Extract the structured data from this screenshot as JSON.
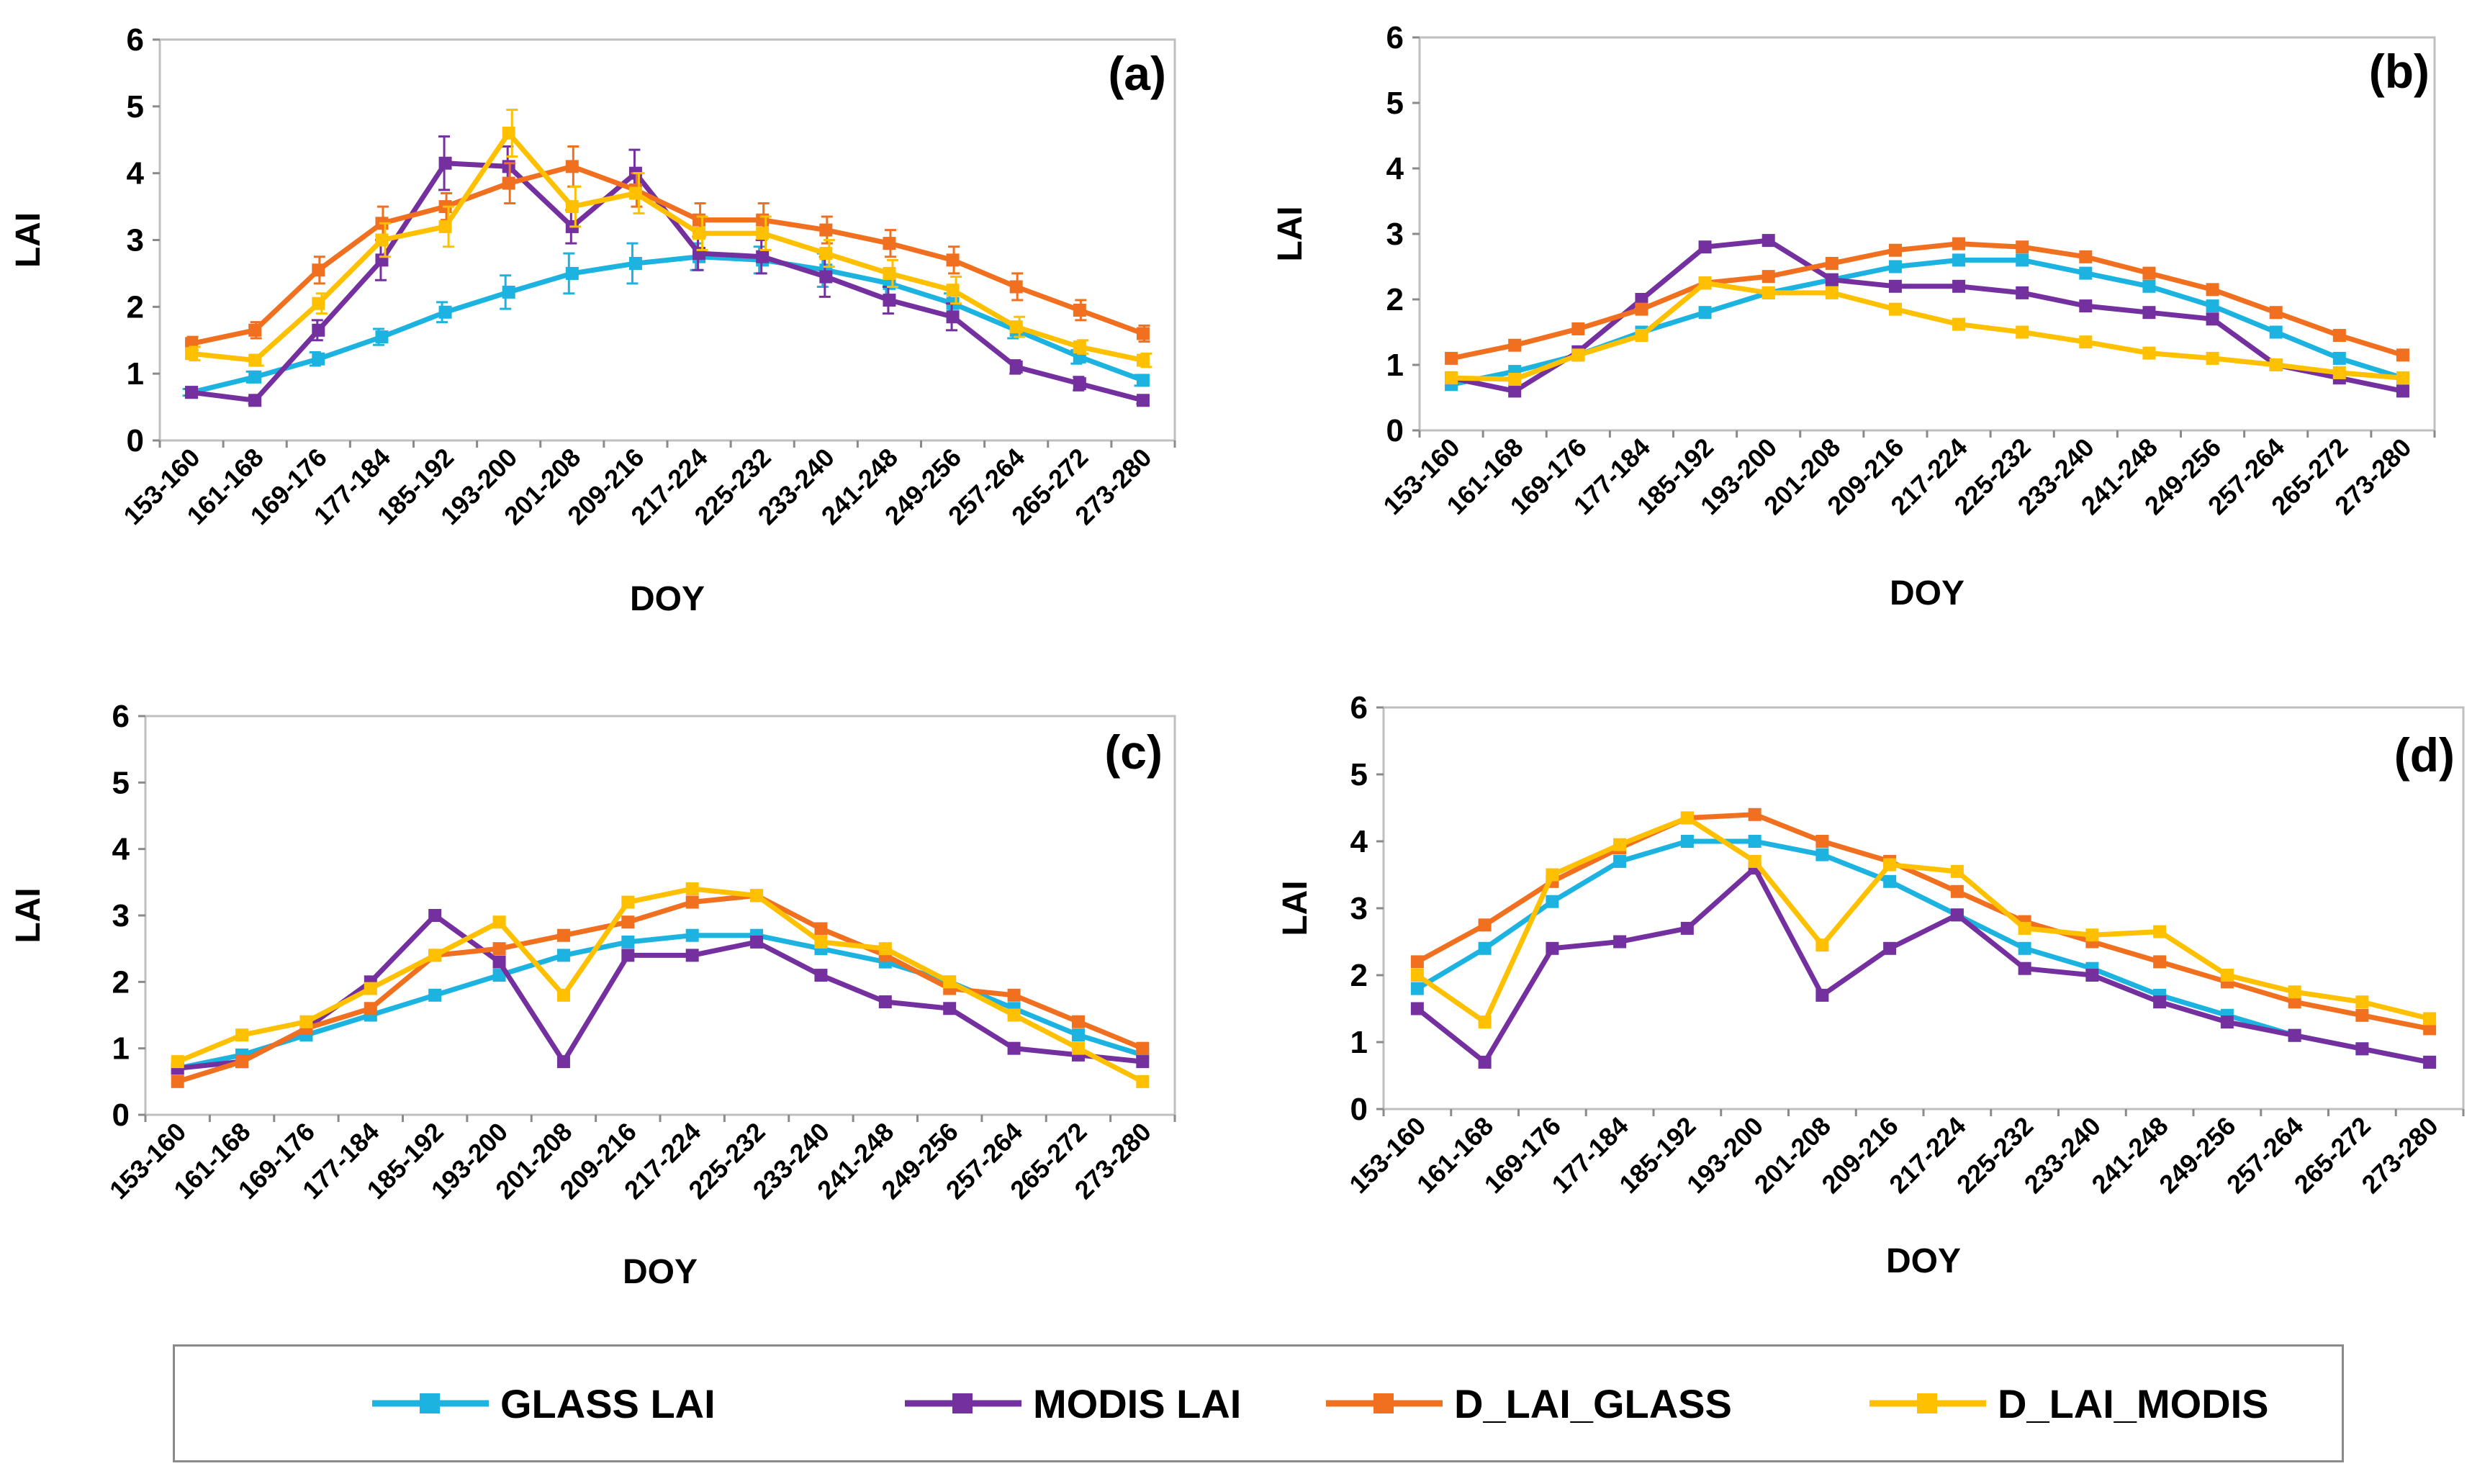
{
  "categories": [
    "153-160",
    "161-168",
    "169-176",
    "177-184",
    "185-192",
    "193-200",
    "201-208",
    "209-216",
    "217-224",
    "225-232",
    "233-240",
    "241-248",
    "249-256",
    "257-264",
    "265-272",
    "273-280"
  ],
  "series_meta": [
    {
      "key": "glass",
      "name": "GLASS LAI",
      "color": "#1cb3e0"
    },
    {
      "key": "modis",
      "name": "MODIS LAI",
      "color": "#7530a0"
    },
    {
      "key": "dglass",
      "name": "D_LAI_GLASS",
      "color": "#f07020"
    },
    {
      "key": "dmodis",
      "name": "D_LAI_MODIS",
      "color": "#ffc000"
    }
  ],
  "chart_data": [
    {
      "type": "line",
      "panel": "(a)",
      "xlabel": "DOY",
      "ylabel": "LAI",
      "ylim": [
        0,
        6
      ],
      "yticks": [
        "0",
        "1",
        "2",
        "3",
        "4",
        "5",
        "6"
      ],
      "error_bars": true,
      "series": [
        {
          "name": "GLASS LAI",
          "values": [
            0.72,
            0.95,
            1.22,
            1.55,
            1.92,
            2.22,
            2.5,
            2.65,
            2.75,
            2.7,
            2.55,
            2.35,
            2.05,
            1.65,
            1.25,
            0.9
          ],
          "errors": [
            0.05,
            0.08,
            0.1,
            0.12,
            0.15,
            0.25,
            0.3,
            0.3,
            0.2,
            0.2,
            0.25,
            0.2,
            0.15,
            0.12,
            0.1,
            0.08
          ]
        },
        {
          "name": "MODIS LAI",
          "values": [
            0.72,
            0.6,
            1.65,
            2.7,
            4.15,
            4.1,
            3.2,
            4.0,
            2.8,
            2.75,
            2.45,
            2.1,
            1.85,
            1.1,
            0.85,
            0.6
          ],
          "errors": [
            0.05,
            0.05,
            0.15,
            0.3,
            0.4,
            0.3,
            0.25,
            0.35,
            0.25,
            0.25,
            0.3,
            0.2,
            0.2,
            0.1,
            0.1,
            0.05
          ]
        },
        {
          "name": "D_LAI_GLASS",
          "values": [
            1.45,
            1.65,
            2.55,
            3.25,
            3.5,
            3.85,
            4.1,
            3.75,
            3.3,
            3.3,
            3.15,
            2.95,
            2.7,
            2.3,
            1.95,
            1.6
          ],
          "errors": [
            0.1,
            0.12,
            0.2,
            0.25,
            0.2,
            0.3,
            0.3,
            0.25,
            0.25,
            0.25,
            0.2,
            0.2,
            0.2,
            0.2,
            0.15,
            0.12
          ]
        },
        {
          "name": "D_LAI_MODIS",
          "values": [
            1.3,
            1.2,
            2.05,
            3.0,
            3.2,
            4.6,
            3.5,
            3.7,
            3.1,
            3.1,
            2.8,
            2.5,
            2.25,
            1.7,
            1.4,
            1.2
          ],
          "errors": [
            0.1,
            0.08,
            0.15,
            0.25,
            0.3,
            0.35,
            0.3,
            0.3,
            0.25,
            0.25,
            0.2,
            0.2,
            0.2,
            0.15,
            0.1,
            0.1
          ]
        }
      ]
    },
    {
      "type": "line",
      "panel": "(b)",
      "xlabel": "DOY",
      "ylabel": "LAI",
      "ylim": [
        0,
        6
      ],
      "yticks": [
        "0",
        "1",
        "2",
        "3",
        "4",
        "5",
        "6"
      ],
      "error_bars": false,
      "series": [
        {
          "name": "GLASS LAI",
          "values": [
            0.7,
            0.9,
            1.15,
            1.5,
            1.8,
            2.1,
            2.3,
            2.5,
            2.6,
            2.6,
            2.4,
            2.2,
            1.9,
            1.5,
            1.1,
            0.8
          ]
        },
        {
          "name": "MODIS LAI",
          "values": [
            0.8,
            0.6,
            1.2,
            2.0,
            2.8,
            2.9,
            2.3,
            2.2,
            2.2,
            2.1,
            1.9,
            1.8,
            1.7,
            1.0,
            0.8,
            0.6
          ]
        },
        {
          "name": "D_LAI_GLASS",
          "values": [
            1.1,
            1.3,
            1.55,
            1.85,
            2.25,
            2.35,
            2.55,
            2.75,
            2.85,
            2.8,
            2.65,
            2.4,
            2.15,
            1.8,
            1.45,
            1.15
          ]
        },
        {
          "name": "D_LAI_MODIS",
          "values": [
            0.8,
            0.78,
            1.15,
            1.45,
            2.25,
            2.1,
            2.1,
            1.85,
            1.62,
            1.5,
            1.35,
            1.18,
            1.1,
            1.0,
            0.88,
            0.8
          ]
        }
      ]
    },
    {
      "type": "line",
      "panel": "(c)",
      "xlabel": "DOY",
      "ylabel": "LAI",
      "ylim": [
        0,
        6
      ],
      "yticks": [
        "0",
        "1",
        "2",
        "3",
        "4",
        "5",
        "6"
      ],
      "error_bars": false,
      "series": [
        {
          "name": "GLASS LAI",
          "values": [
            0.7,
            0.9,
            1.2,
            1.5,
            1.8,
            2.1,
            2.4,
            2.6,
            2.7,
            2.7,
            2.5,
            2.3,
            2.0,
            1.6,
            1.2,
            0.9
          ]
        },
        {
          "name": "MODIS LAI",
          "values": [
            0.7,
            0.8,
            1.3,
            2.0,
            3.0,
            2.3,
            0.8,
            2.4,
            2.4,
            2.6,
            2.1,
            1.7,
            1.6,
            1.0,
            0.9,
            0.8
          ]
        },
        {
          "name": "D_LAI_GLASS",
          "values": [
            0.5,
            0.8,
            1.3,
            1.6,
            2.4,
            2.5,
            2.7,
            2.9,
            3.2,
            3.3,
            2.8,
            2.4,
            1.9,
            1.8,
            1.4,
            1.0
          ]
        },
        {
          "name": "D_LAI_MODIS",
          "values": [
            0.8,
            1.2,
            1.4,
            1.9,
            2.4,
            2.9,
            1.8,
            3.2,
            3.4,
            3.3,
            2.6,
            2.5,
            2.0,
            1.5,
            1.0,
            0.5
          ]
        }
      ]
    },
    {
      "type": "line",
      "panel": "(d)",
      "xlabel": "DOY",
      "ylabel": "LAI",
      "ylim": [
        0,
        6
      ],
      "yticks": [
        "0",
        "1",
        "2",
        "3",
        "4",
        "5",
        "6"
      ],
      "error_bars": false,
      "series": [
        {
          "name": "GLASS LAI",
          "values": [
            1.8,
            2.4,
            3.1,
            3.7,
            4.0,
            4.0,
            3.8,
            3.4,
            2.9,
            2.4,
            2.1,
            1.7,
            1.4,
            1.1,
            0.9,
            0.7
          ]
        },
        {
          "name": "MODIS LAI",
          "values": [
            1.5,
            0.7,
            2.4,
            2.5,
            2.7,
            3.6,
            1.7,
            2.4,
            2.9,
            2.1,
            2.0,
            1.6,
            1.3,
            1.1,
            0.9,
            0.7
          ]
        },
        {
          "name": "D_LAI_GLASS",
          "values": [
            2.2,
            2.75,
            3.4,
            3.9,
            4.35,
            4.4,
            4.0,
            3.7,
            3.25,
            2.8,
            2.5,
            2.2,
            1.9,
            1.6,
            1.4,
            1.2
          ]
        },
        {
          "name": "D_LAI_MODIS",
          "values": [
            2.0,
            1.3,
            3.5,
            3.95,
            4.35,
            3.7,
            2.45,
            3.65,
            3.55,
            2.7,
            2.6,
            2.65,
            2.0,
            1.75,
            1.6,
            1.35
          ]
        }
      ]
    }
  ]
}
